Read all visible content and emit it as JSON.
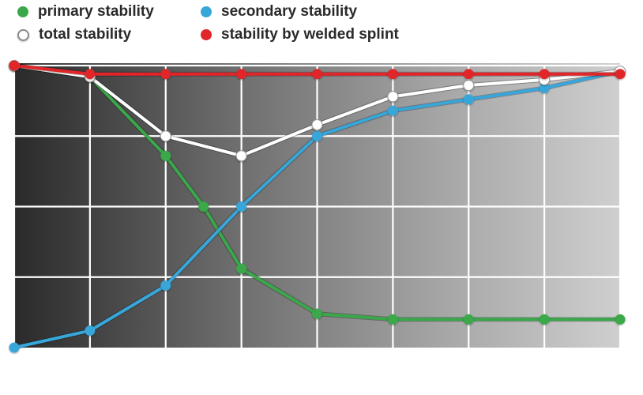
{
  "legend": {
    "items": [
      {
        "label": "primary stability",
        "color": "#3aa84a"
      },
      {
        "label": "secondary stability",
        "color": "#37a6d9"
      },
      {
        "label": "total stability",
        "color": "#ffffff"
      },
      {
        "label": "stability by welded splint",
        "color": "#e1262a"
      }
    ]
  },
  "chart_data": {
    "type": "line",
    "x": [
      0,
      1,
      2,
      3,
      4,
      5,
      6,
      7,
      8
    ],
    "xlim": [
      0,
      8
    ],
    "ylim": [
      0,
      100
    ],
    "grid": true,
    "legend_position": "top",
    "series": [
      {
        "name": "primary stability",
        "color": "#3aa84a",
        "points": [
          [
            0,
            100
          ],
          [
            1,
            96
          ],
          [
            2,
            68
          ],
          [
            2.5,
            50
          ],
          [
            3,
            28
          ],
          [
            4,
            12
          ],
          [
            5,
            10
          ],
          [
            6,
            10
          ],
          [
            7,
            10
          ],
          [
            8,
            10
          ]
        ]
      },
      {
        "name": "secondary stability",
        "color": "#37a6d9",
        "points": [
          [
            0,
            0
          ],
          [
            1,
            6
          ],
          [
            2,
            22
          ],
          [
            3,
            50
          ],
          [
            4,
            75
          ],
          [
            5,
            84
          ],
          [
            6,
            88
          ],
          [
            7,
            92
          ],
          [
            8,
            98
          ]
        ]
      },
      {
        "name": "total stability",
        "color": "#ffffff",
        "points": [
          [
            0,
            100
          ],
          [
            1,
            96
          ],
          [
            2,
            75
          ],
          [
            3,
            68
          ],
          [
            4,
            79
          ],
          [
            5,
            89
          ],
          [
            6,
            93
          ],
          [
            7,
            95
          ],
          [
            8,
            98
          ]
        ]
      },
      {
        "name": "stability by welded splint",
        "color": "#e1262a",
        "points": [
          [
            0,
            100
          ],
          [
            1,
            97
          ],
          [
            2,
            97
          ],
          [
            3,
            97
          ],
          [
            4,
            97
          ],
          [
            5,
            97
          ],
          [
            6,
            97
          ],
          [
            7,
            97
          ],
          [
            8,
            97
          ]
        ]
      }
    ]
  }
}
